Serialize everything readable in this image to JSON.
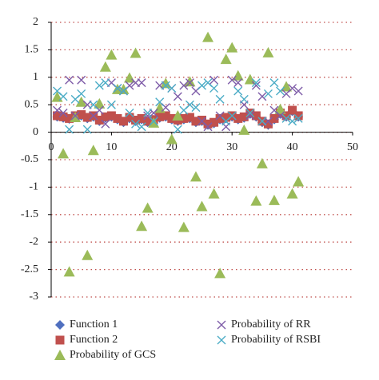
{
  "chart_data": {
    "type": "scatter",
    "x": [
      1,
      2,
      3,
      4,
      5,
      6,
      7,
      8,
      9,
      10,
      11,
      12,
      13,
      14,
      15,
      16,
      17,
      18,
      19,
      20,
      21,
      22,
      23,
      24,
      25,
      26,
      27,
      28,
      29,
      30,
      31,
      32,
      33,
      34,
      35,
      36,
      37,
      38,
      39,
      40,
      41
    ],
    "series": [
      {
        "name": "Function 1",
        "color": "#4f6fbf",
        "marker": "diamond",
        "values": [
          0.28,
          0.26,
          0.24,
          0.28,
          0.3,
          0.25,
          0.28,
          0.2,
          0.26,
          0.28,
          0.23,
          0.18,
          0.25,
          0.2,
          0.23,
          0.18,
          0.21,
          0.26,
          0.28,
          0.23,
          0.2,
          0.23,
          0.25,
          0.18,
          0.2,
          0.13,
          0.16,
          0.23,
          0.25,
          0.28,
          0.23,
          0.26,
          0.33,
          0.28,
          0.18,
          0.13,
          0.23,
          0.33,
          0.28,
          0.38,
          0.28
        ]
      },
      {
        "name": "Function 2",
        "color": "#c0504d",
        "marker": "square",
        "values": [
          0.3,
          0.28,
          0.25,
          0.3,
          0.32,
          0.27,
          0.3,
          0.22,
          0.28,
          0.3,
          0.25,
          0.2,
          0.27,
          0.22,
          0.25,
          0.2,
          0.23,
          0.28,
          0.3,
          0.25,
          0.22,
          0.25,
          0.27,
          0.2,
          0.22,
          0.15,
          0.18,
          0.25,
          0.27,
          0.3,
          0.25,
          0.28,
          0.35,
          0.3,
          0.2,
          0.15,
          0.25,
          0.35,
          0.3,
          0.4,
          0.3
        ]
      },
      {
        "name": "Probability of GCS",
        "color": "#9bbb59",
        "marker": "triangle",
        "values": [
          0.64,
          -0.39,
          -2.54,
          0.27,
          0.55,
          -2.24,
          -0.33,
          0.52,
          1.19,
          1.41,
          0.78,
          0.78,
          0.99,
          1.44,
          -1.71,
          -1.38,
          0.17,
          0.44,
          0.89,
          -0.13,
          0.3,
          -1.73,
          0.92,
          -0.81,
          -1.35,
          1.73,
          -1.12,
          -2.57,
          1.33,
          1.54,
          1.03,
          0.04,
          0.96,
          -1.25,
          -0.57,
          1.45,
          -1.24,
          0.42,
          0.83,
          -1.12,
          -0.9
        ]
      },
      {
        "name": "Probability of RR",
        "color": "#7e5ca8",
        "marker": "x",
        "values": [
          0.4,
          0.35,
          0.95,
          0.3,
          0.95,
          0.5,
          0.3,
          0.4,
          0.15,
          0.9,
          0.8,
          0.75,
          0.85,
          0.9,
          0.9,
          0.3,
          0.35,
          0.85,
          0.45,
          0.8,
          0.65,
          0.85,
          0.9,
          0.75,
          0.2,
          0.1,
          0.95,
          0.3,
          0.1,
          0.95,
          0.9,
          0.5,
          0.3,
          0.85,
          0.65,
          0.2,
          0.4,
          0.3,
          0.7,
          0.8,
          0.75
        ]
      },
      {
        "name": "Probability of RSBI",
        "color": "#4bacc6",
        "marker": "x",
        "values": [
          0.75,
          0.65,
          0.05,
          0.6,
          0.7,
          0.05,
          0.5,
          0.85,
          0.9,
          0.5,
          0.8,
          0.75,
          0.35,
          0.15,
          0.1,
          0.35,
          0.2,
          0.55,
          0.85,
          0.8,
          0.05,
          0.4,
          0.5,
          0.45,
          0.85,
          0.9,
          0.8,
          0.6,
          0.2,
          0.3,
          0.75,
          0.6,
          0.35,
          0.9,
          0.2,
          0.7,
          0.9,
          0.75,
          0.25,
          0.2,
          0.25
        ]
      }
    ],
    "xlim": [
      0,
      50
    ],
    "xticks": [
      0,
      10,
      20,
      30,
      40,
      50
    ],
    "ylim": [
      -3,
      2
    ],
    "yticks": [
      -3,
      -2.5,
      -2,
      -1.5,
      -1,
      -0.5,
      0,
      0.5,
      1,
      1.5,
      2
    ],
    "grid": true,
    "grid_color": "#c0504d"
  }
}
